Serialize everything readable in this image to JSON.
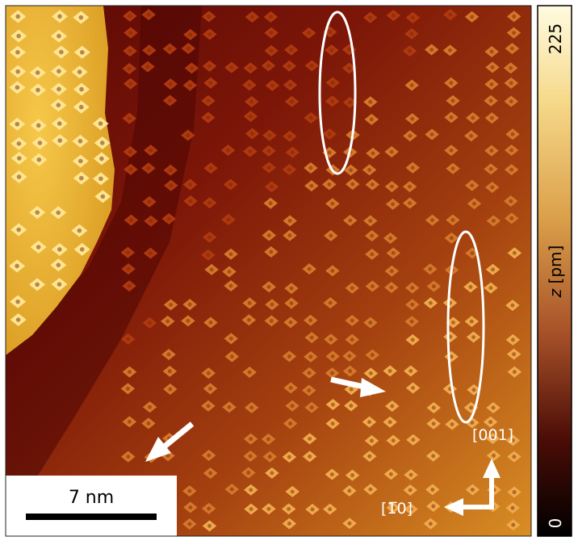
{
  "scale_bar": {
    "label": "7 nm"
  },
  "directions": {
    "vertical": "[001]",
    "horizontal": "[1̅0]"
  },
  "colorbar": {
    "max_label": "225",
    "min_label": "0",
    "axis_label_var": "z",
    "axis_label_unit": " [pm]",
    "colors": {
      "top": "#fff7cf",
      "upper": "#f2c25a",
      "mid": "#c8702a",
      "lower": "#7a1a0c",
      "bottom": "#000000"
    }
  },
  "colors": {
    "terrace_dark": "#6e0e08",
    "terrace_mid": "#a8400f",
    "terrace_light": "#d88a22",
    "island": "#e8b02c",
    "molecule_bright": "#ffe79a",
    "annotation": "#ffffff"
  }
}
